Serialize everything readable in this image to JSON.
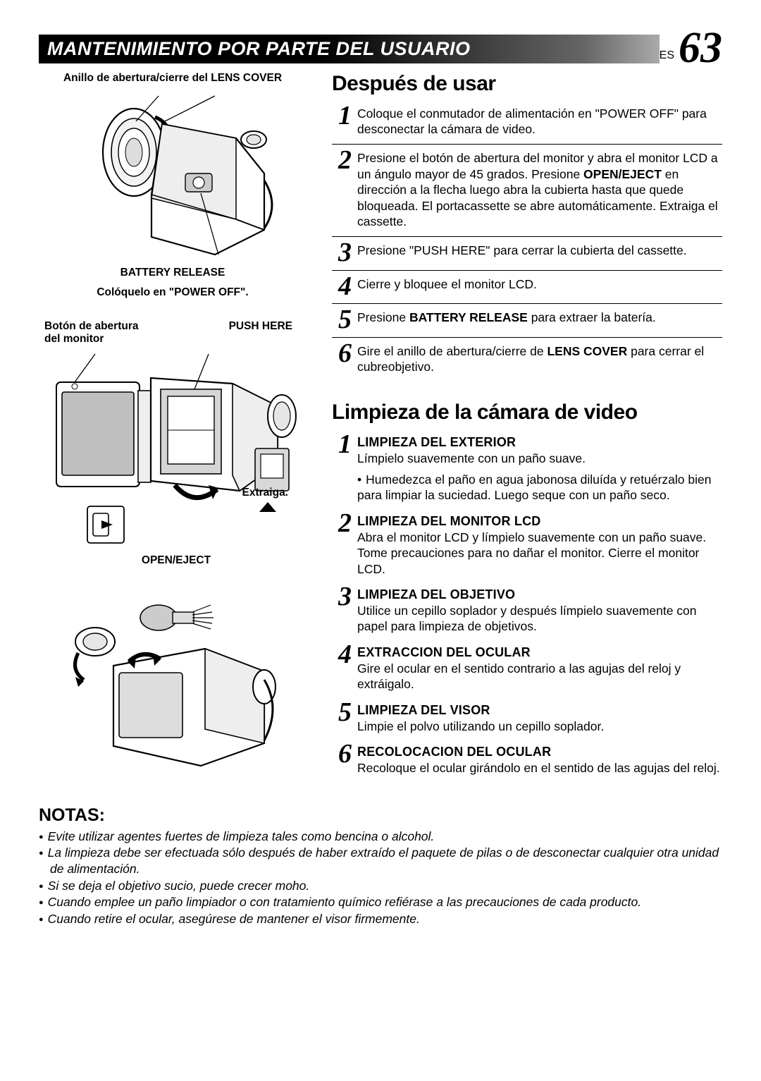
{
  "header": {
    "title": "MANTENIMIENTO POR PARTE DEL USUARIO",
    "lang_prefix": "ES",
    "page_number": "63"
  },
  "figures": {
    "fig1": {
      "caption_top": "Anillo de abertura/cierre del LENS COVER",
      "battery_release": "BATTERY RELEASE",
      "bottom_cap": "Colóquelo en \"POWER OFF\"."
    },
    "fig2": {
      "left_label_1": "Botón de abertura",
      "left_label_2": "del monitor",
      "right_label": "PUSH HERE",
      "extraiga": "Extraiga.",
      "open_eject": "OPEN/EJECT"
    }
  },
  "after_use": {
    "heading": "Después de usar",
    "steps": [
      {
        "n": "1",
        "text": "Coloque el conmutador de alimentación en \"POWER OFF\" para desconectar la cámara de video."
      },
      {
        "n": "2",
        "text_html": "Presione el botón de abertura del monitor y abra el monitor LCD a un ángulo mayor de 45 grados. Presione <b>OPEN/EJECT</b> en dirección a la flecha luego abra la cubierta hasta que quede bloqueada. El portacassette se abre automáticamente. Extraiga el cassette."
      },
      {
        "n": "3",
        "text": "Presione \"PUSH HERE\" para cerrar la cubierta del cassette."
      },
      {
        "n": "4",
        "text": "Cierre y bloquee el monitor LCD."
      },
      {
        "n": "5",
        "text_html": "Presione <b>BATTERY RELEASE</b> para extraer la batería."
      },
      {
        "n": "6",
        "text_html": "Gire el anillo de abertura/cierre de <b>LENS COVER</b> para cerrar el cubreobjetivo."
      }
    ]
  },
  "cleaning": {
    "heading": "Limpieza de la cámara de video",
    "items": [
      {
        "n": "1",
        "head": "LIMPIEZA DEL EXTERIOR",
        "body": "Límpielo suavemente con un paño suave.",
        "bullet": "Humedezca el paño en agua jabonosa diluída y retuérzalo bien para limpiar la suciedad. Luego seque con un paño seco."
      },
      {
        "n": "2",
        "head": "LIMPIEZA DEL MONITOR LCD",
        "body": "Abra el monitor LCD y límpielo suavemente con un paño suave. Tome precauciones para no dañar el monitor. Cierre el monitor LCD."
      },
      {
        "n": "3",
        "head": "LIMPIEZA DEL OBJETIVO",
        "body": "Utilice un cepillo soplador y después límpielo suavemente con papel para limpieza de objetivos."
      },
      {
        "n": "4",
        "head": "EXTRACCION DEL OCULAR",
        "body": "Gire el ocular en el sentido contrario a las agujas del reloj y extráigalo."
      },
      {
        "n": "5",
        "head": "LIMPIEZA DEL VISOR",
        "body": "Limpie el polvo utilizando un cepillo soplador."
      },
      {
        "n": "6",
        "head": "RECOLOCACION DEL OCULAR",
        "body": "Recoloque el ocular girándolo en el sentido de las agujas del reloj."
      }
    ]
  },
  "notes": {
    "heading": "NOTAS:",
    "items": [
      "Evite utilizar agentes fuertes de limpieza tales como bencina o alcohol.",
      "La limpieza debe ser efectuada sólo después de haber extraído el paquete de pilas o de desconectar cualquier otra unidad de alimentación.",
      "Si se deja el objetivo sucio, puede crecer moho.",
      "Cuando emplee un paño limpiador o con tratamiento químico refiérase a las precauciones de cada producto.",
      "Cuando retire el ocular, asegúrese de mantener el visor firmemente."
    ]
  }
}
